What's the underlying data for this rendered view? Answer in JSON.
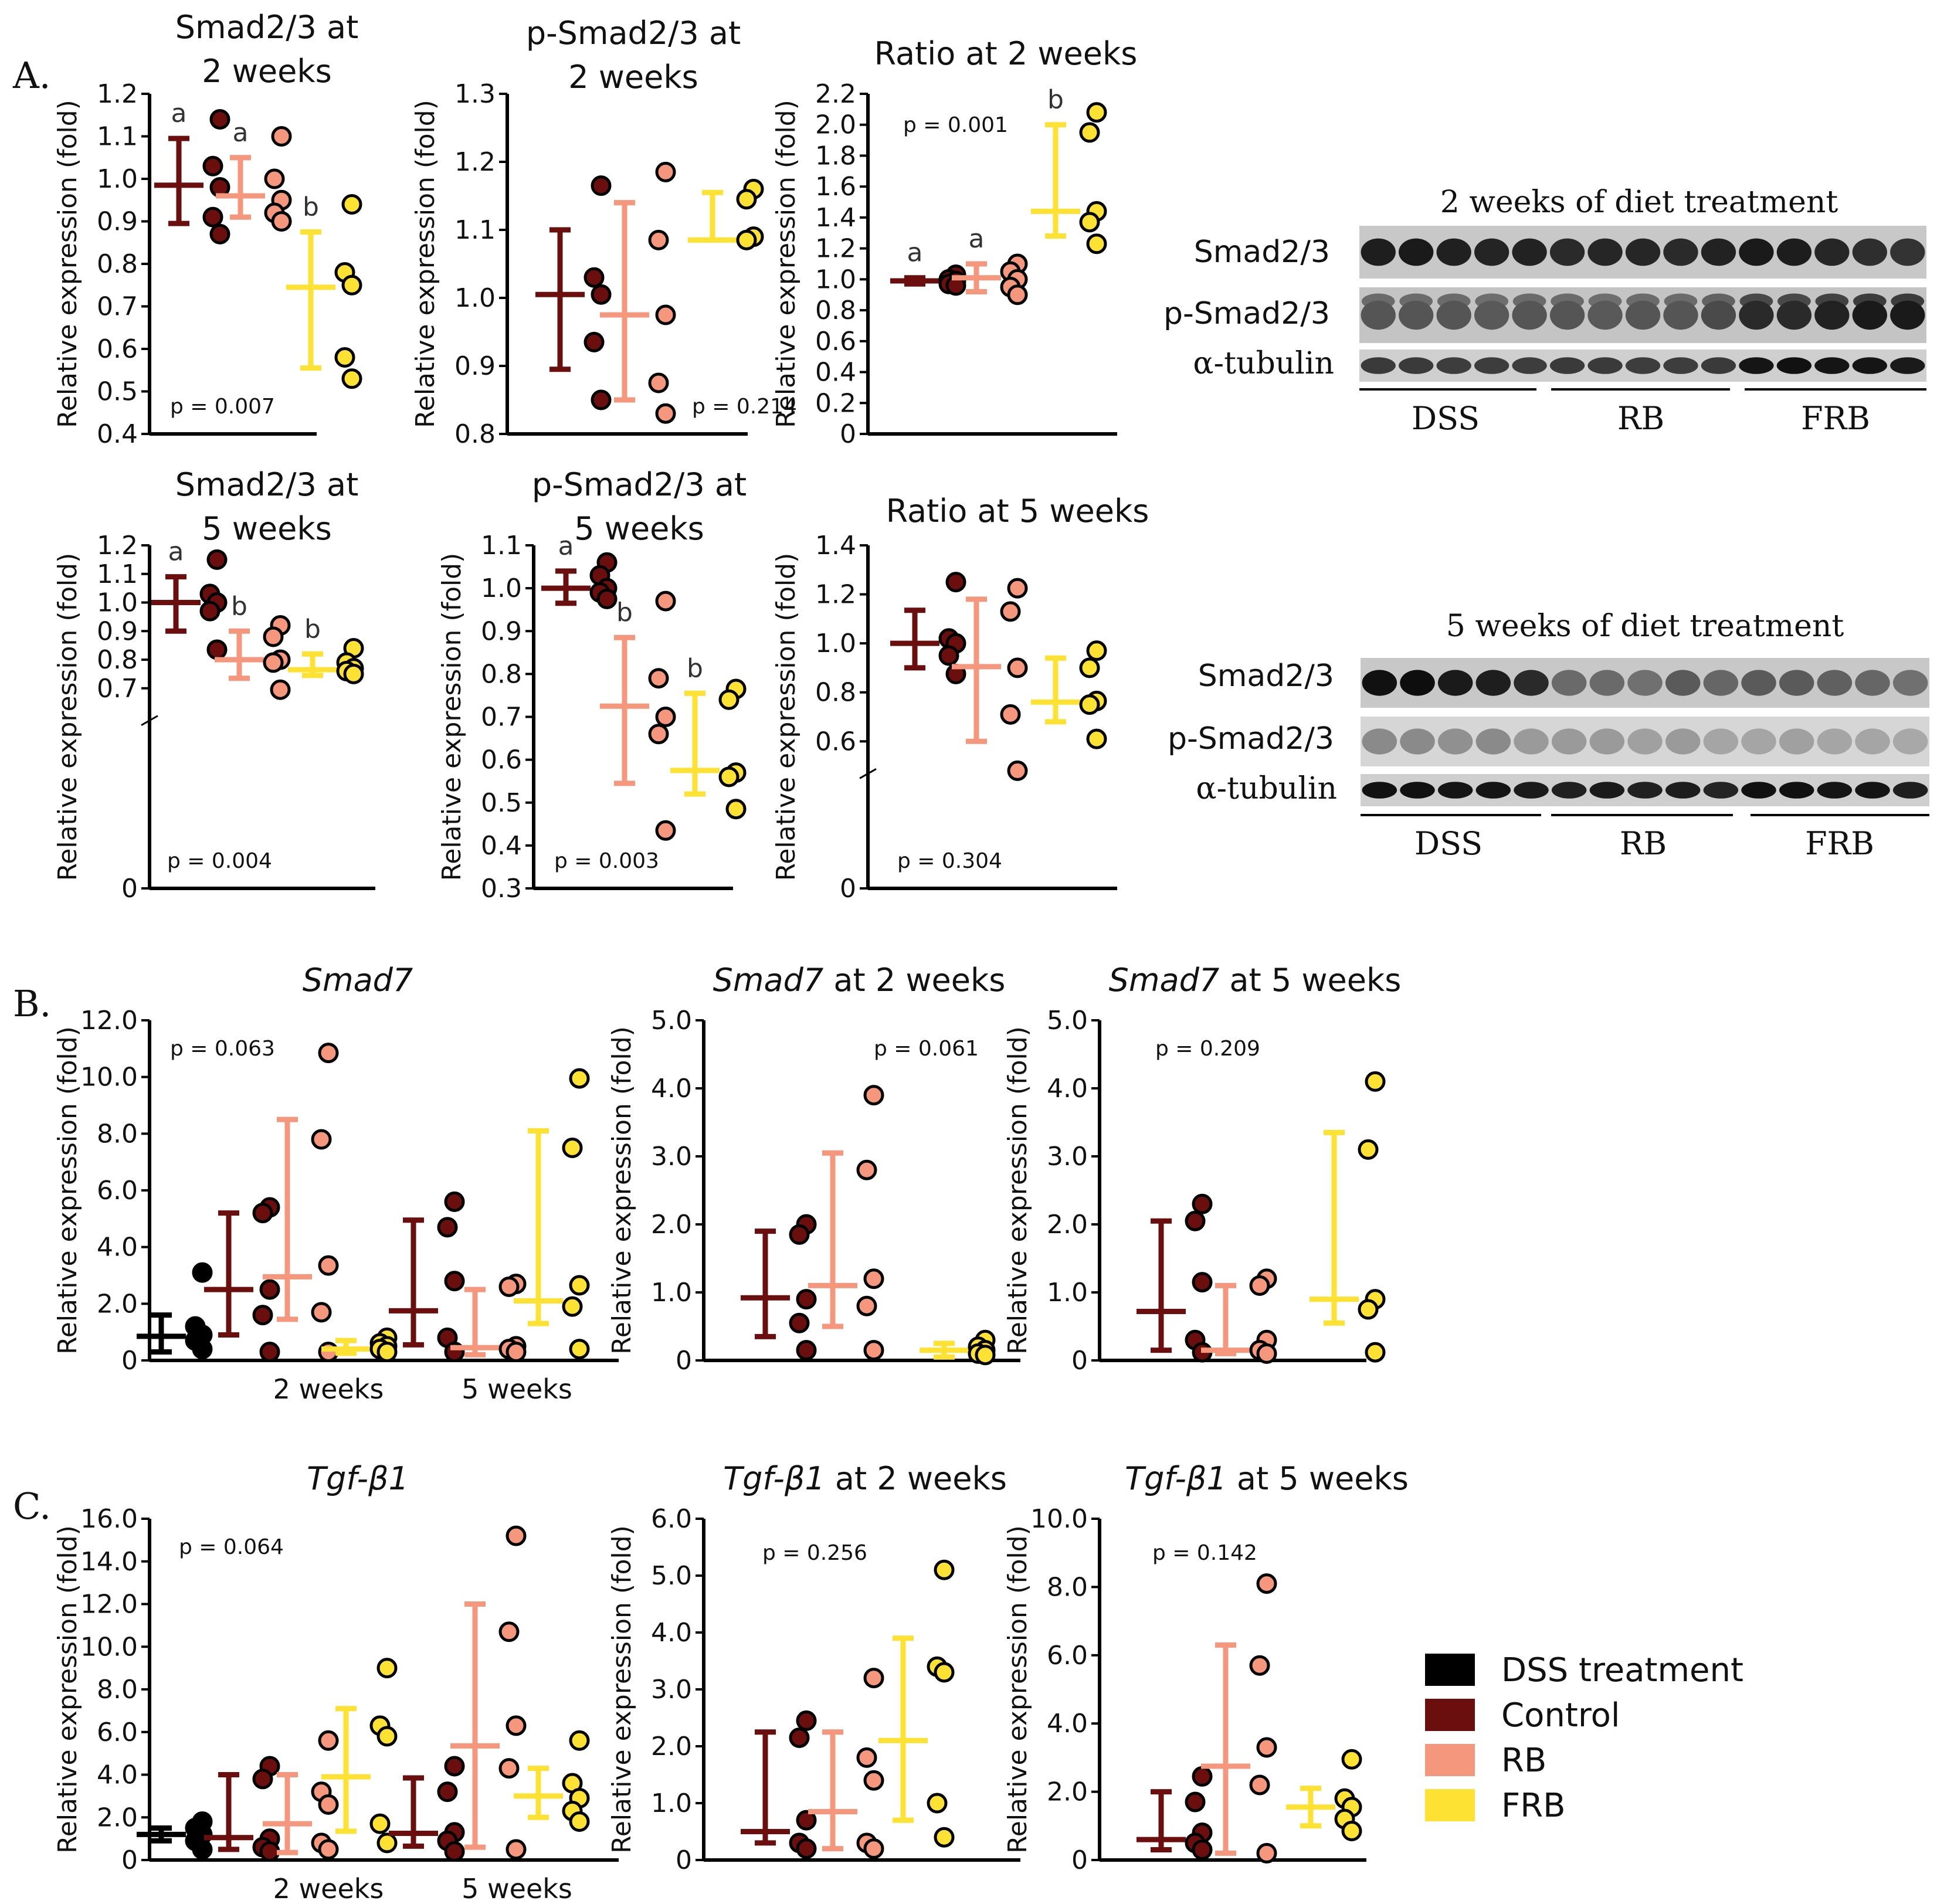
{
  "colors": {
    "DSS treatment": "#000000",
    "Control": "#6b0e0e",
    "RB": "#f4977c",
    "FRB": "#fde233",
    "dot_edge": "#000000"
  },
  "panel_labels": [
    "A.",
    "B.",
    "C."
  ],
  "y_label": "Relative expression (fold)",
  "legend": {
    "entries": [
      "DSS treatment",
      "Control",
      "RB",
      "FRB"
    ]
  },
  "blots": [
    {
      "title": "2 weeks of diet treatment",
      "rows": [
        "Smad2/3",
        "p-Smad2/3",
        "α-tubulin"
      ],
      "groups": [
        "DSS",
        "RB",
        "FRB"
      ],
      "lanes_per_group": 5
    },
    {
      "title": "5 weeks of diet treatment",
      "rows": [
        "Smad2/3",
        "p-Smad2/3",
        "α-tubulin"
      ],
      "groups": [
        "DSS",
        "RB",
        "FRB"
      ],
      "lanes_per_group": 5
    }
  ],
  "chart_data": [
    {
      "id": "a1",
      "type": "scatter",
      "title": [
        "Smad2/3 at",
        "2 weeks"
      ],
      "ylabel": "Relative expression (fold)",
      "ylim": [
        0.4,
        1.2
      ],
      "yticks": [
        0.4,
        0.5,
        0.6,
        0.7,
        0.8,
        0.9,
        1.0,
        1.1,
        1.2
      ],
      "yticklabels": [
        "0.4",
        "0.5",
        "0.6",
        "0.7",
        "0.8",
        "0.9",
        "1.0",
        "1.1",
        "1.2"
      ],
      "p_value": "p = 0.007",
      "series": [
        {
          "name": "Control",
          "mean": 0.985,
          "low": 0.895,
          "high": 1.095,
          "points": [
            1.14,
            1.03,
            0.98,
            0.91,
            0.87
          ],
          "letter": "a"
        },
        {
          "name": "RB",
          "mean": 0.96,
          "low": 0.91,
          "high": 1.05,
          "points": [
            1.1,
            1.0,
            0.95,
            0.92,
            0.9
          ],
          "letter": "a"
        },
        {
          "name": "FRB",
          "mean": 0.745,
          "low": 0.555,
          "high": 0.875,
          "points": [
            0.94,
            0.78,
            0.75,
            0.58,
            0.53
          ],
          "letter": "b"
        }
      ],
      "xgroups": []
    },
    {
      "id": "a2",
      "type": "scatter",
      "title": [
        "p-Smad2/3 at",
        "2 weeks"
      ],
      "ylabel": "Relative expression (fold)",
      "ylim": [
        0.8,
        1.3
      ],
      "yticks": [
        0.8,
        0.9,
        1.0,
        1.1,
        1.2,
        1.3
      ],
      "yticklabels": [
        "0.8",
        "0.9",
        "1.0",
        "1.1",
        "1.2",
        "1.3"
      ],
      "p_value": "p = 0.214",
      "series": [
        {
          "name": "Control",
          "mean": 1.005,
          "low": 0.895,
          "high": 1.1,
          "points": [
            1.165,
            1.03,
            1.005,
            0.935,
            0.85
          ]
        },
        {
          "name": "RB",
          "mean": 0.975,
          "low": 0.85,
          "high": 1.14,
          "points": [
            1.185,
            1.085,
            0.975,
            0.875,
            0.83
          ]
        },
        {
          "name": "FRB",
          "mean": 1.085,
          "low": 1.085,
          "high": 1.155,
          "points": [
            1.16,
            1.145,
            1.09,
            1.085
          ]
        }
      ],
      "xgroups": []
    },
    {
      "id": "a3",
      "type": "scatter",
      "title": [
        "Ratio at 2 weeks"
      ],
      "ylabel": "Relative expression (fold)",
      "ylim": [
        0,
        2.2
      ],
      "yticks": [
        0,
        0.2,
        0.4,
        0.6,
        0.8,
        1.0,
        1.2,
        1.4,
        1.6,
        1.8,
        2.0,
        2.2
      ],
      "yticklabels": [
        "0",
        "0.2",
        "0.4",
        "0.6",
        "0.8",
        "1.0",
        "1.2",
        "1.4",
        "1.6",
        "1.8",
        "2.0",
        "2.2"
      ],
      "p_value": "p = 0.001",
      "series": [
        {
          "name": "Control",
          "mean": 0.99,
          "low": 0.97,
          "high": 1.01,
          "points": [
            1.03,
            1.0,
            0.99,
            0.97,
            0.96
          ],
          "letter": "a"
        },
        {
          "name": "RB",
          "mean": 1.01,
          "low": 0.92,
          "high": 1.1,
          "points": [
            1.1,
            1.05,
            1.0,
            0.95,
            0.9
          ],
          "letter": "a"
        },
        {
          "name": "FRB",
          "mean": 1.44,
          "low": 1.28,
          "high": 2.0,
          "points": [
            2.08,
            1.95,
            1.44,
            1.37,
            1.23
          ],
          "letter": "b"
        }
      ],
      "xgroups": []
    },
    {
      "id": "a4",
      "type": "scatter",
      "title": [
        "Smad2/3 at",
        "5 weeks"
      ],
      "ylabel": "Relative expression (fold)",
      "ylim": [
        0,
        1.2
      ],
      "yticks": [
        0,
        0.7,
        0.8,
        0.9,
        1.0,
        1.1,
        1.2
      ],
      "yticklabels": [
        "0",
        "0.7",
        "0.8",
        "0.9",
        "1.0",
        "1.1",
        "1.2"
      ],
      "axis_break": true,
      "p_value": "p = 0.004",
      "series": [
        {
          "name": "Control",
          "mean": 1.0,
          "low": 0.9,
          "high": 1.09,
          "points": [
            1.15,
            1.03,
            1.0,
            0.97,
            0.835
          ],
          "letter": "a"
        },
        {
          "name": "RB",
          "mean": 0.8,
          "low": 0.735,
          "high": 0.9,
          "points": [
            0.92,
            0.88,
            0.8,
            0.79,
            0.695
          ],
          "letter": "b"
        },
        {
          "name": "FRB",
          "mean": 0.765,
          "low": 0.745,
          "high": 0.82,
          "points": [
            0.84,
            0.79,
            0.77,
            0.76,
            0.75
          ],
          "letter": "b"
        }
      ],
      "xgroups": []
    },
    {
      "id": "a5",
      "type": "scatter",
      "title": [
        "p-Smad2/3 at",
        "5 weeks"
      ],
      "ylabel": "Relative expression (fold)",
      "ylim": [
        0.3,
        1.1
      ],
      "yticks": [
        0.3,
        0.4,
        0.5,
        0.6,
        0.7,
        0.8,
        0.9,
        1.0,
        1.1
      ],
      "yticklabels": [
        "0.3",
        "0.4",
        "0.5",
        "0.6",
        "0.7",
        "0.8",
        "0.9",
        "1.0",
        "1.1"
      ],
      "p_value": "p = 0.003",
      "series": [
        {
          "name": "Control",
          "mean": 1.0,
          "low": 0.965,
          "high": 1.04,
          "points": [
            1.06,
            1.03,
            1.0,
            0.99,
            0.975
          ],
          "letter": "a"
        },
        {
          "name": "RB",
          "mean": 0.725,
          "low": 0.545,
          "high": 0.885,
          "points": [
            0.97,
            0.79,
            0.7,
            0.66,
            0.435
          ],
          "letter": "b"
        },
        {
          "name": "FRB",
          "mean": 0.575,
          "low": 0.52,
          "high": 0.755,
          "points": [
            0.765,
            0.74,
            0.57,
            0.56,
            0.485
          ],
          "letter": "b"
        }
      ],
      "xgroups": []
    },
    {
      "id": "a6",
      "type": "scatter",
      "title": [
        "Ratio at 5 weeks"
      ],
      "ylabel": "Relative expression (fold)",
      "ylim": [
        0,
        1.4
      ],
      "yticks": [
        0,
        0.6,
        0.8,
        1.0,
        1.2,
        1.4
      ],
      "yticklabels": [
        "0",
        "0.6",
        "0.8",
        "1.0",
        "1.2",
        "1.4"
      ],
      "axis_break": true,
      "p_value": "p = 0.304",
      "series": [
        {
          "name": "Control",
          "mean": 1.0,
          "low": 0.9,
          "high": 1.135,
          "points": [
            1.25,
            1.02,
            1.0,
            0.95,
            0.875
          ]
        },
        {
          "name": "RB",
          "mean": 0.905,
          "low": 0.6,
          "high": 1.18,
          "points": [
            1.225,
            1.13,
            0.9,
            0.71,
            0.48
          ]
        },
        {
          "name": "FRB",
          "mean": 0.76,
          "low": 0.68,
          "high": 0.94,
          "points": [
            0.97,
            0.9,
            0.765,
            0.75,
            0.61
          ]
        }
      ],
      "xgroups": []
    },
    {
      "id": "b1",
      "type": "scatter",
      "title": [
        "Smad7"
      ],
      "title_italic": "Smad7",
      "title_rest": "",
      "ylabel": "Relative expression (fold)",
      "ylim": [
        0,
        12
      ],
      "yticks": [
        0,
        2,
        4,
        6,
        8,
        10,
        12
      ],
      "yticklabels": [
        "0",
        "2.0",
        "4.0",
        "6.0",
        "8.0",
        "10.0",
        "12.0"
      ],
      "p_value": "p = 0.063",
      "series": [
        {
          "name": "DSS treatment",
          "mean": 0.85,
          "low": 0.3,
          "high": 1.6,
          "points": [
            3.1,
            1.2,
            0.9,
            0.7,
            0.4
          ]
        },
        {
          "name": "Control",
          "mean": 2.5,
          "low": 0.9,
          "high": 5.2,
          "points": [
            5.4,
            5.2,
            2.5,
            1.6,
            0.3
          ]
        },
        {
          "name": "RB",
          "mean": 2.95,
          "low": 1.45,
          "high": 8.5,
          "points": [
            10.85,
            7.8,
            3.35,
            1.7,
            0.3
          ]
        },
        {
          "name": "FRB",
          "mean": 0.4,
          "low": 0.25,
          "high": 0.7,
          "points": [
            0.8,
            0.6,
            0.5,
            0.4,
            0.3
          ]
        },
        {
          "name": "Control",
          "mean": 1.75,
          "low": 0.55,
          "high": 4.95,
          "points": [
            5.6,
            4.7,
            2.8,
            0.8,
            0.3
          ]
        },
        {
          "name": "RB",
          "mean": 0.45,
          "low": 0.2,
          "high": 2.5,
          "points": [
            2.7,
            2.6,
            0.5,
            0.4,
            0.3
          ]
        },
        {
          "name": "FRB",
          "mean": 2.1,
          "low": 1.3,
          "high": 8.1,
          "points": [
            9.95,
            7.5,
            2.65,
            1.9,
            0.4
          ]
        }
      ],
      "xgroups": [
        "2 weeks",
        "5 weeks"
      ]
    },
    {
      "id": "b2",
      "type": "scatter",
      "title": [
        "Smad7 at 2 weeks"
      ],
      "title_italic": "Smad7",
      "title_rest": " at 2 weeks",
      "ylabel": "Relative expression (fold)",
      "ylim": [
        0,
        5
      ],
      "yticks": [
        0,
        1,
        2,
        3,
        4,
        5
      ],
      "yticklabels": [
        "0",
        "1.0",
        "2.0",
        "3.0",
        "4.0",
        "5.0"
      ],
      "p_value": "p = 0.061",
      "series": [
        {
          "name": "Control",
          "mean": 0.92,
          "low": 0.35,
          "high": 1.9,
          "points": [
            2.0,
            1.85,
            0.9,
            0.55,
            0.15
          ]
        },
        {
          "name": "RB",
          "mean": 1.1,
          "low": 0.5,
          "high": 3.05,
          "points": [
            3.9,
            2.8,
            1.2,
            0.8,
            0.15
          ]
        },
        {
          "name": "FRB",
          "mean": 0.15,
          "low": 0.05,
          "high": 0.25,
          "points": [
            0.3,
            0.2,
            0.15,
            0.1,
            0.08
          ]
        }
      ],
      "xgroups": []
    },
    {
      "id": "b3",
      "type": "scatter",
      "title": [
        "Smad7 at 5 weeks"
      ],
      "title_italic": "Smad7",
      "title_rest": " at 5 weeks",
      "ylabel": "Relative expression (fold)",
      "ylim": [
        0,
        5
      ],
      "yticks": [
        0,
        1,
        2,
        3,
        4,
        5
      ],
      "yticklabels": [
        "0",
        "1.0",
        "2.0",
        "3.0",
        "4.0",
        "5.0"
      ],
      "p_value": "p = 0.209",
      "series": [
        {
          "name": "Control",
          "mean": 0.72,
          "low": 0.15,
          "high": 2.05,
          "points": [
            2.3,
            2.05,
            1.15,
            0.3,
            0.12
          ]
        },
        {
          "name": "RB",
          "mean": 0.15,
          "low": 0.1,
          "high": 1.1,
          "points": [
            1.2,
            1.1,
            0.3,
            0.15,
            0.1
          ]
        },
        {
          "name": "FRB",
          "mean": 0.9,
          "low": 0.55,
          "high": 3.35,
          "points": [
            4.1,
            3.1,
            0.9,
            0.75,
            0.12
          ]
        }
      ],
      "xgroups": []
    },
    {
      "id": "c1",
      "type": "scatter",
      "title": [
        "Tgf-β1"
      ],
      "title_italic": "Tgf-β1",
      "title_rest": "",
      "ylabel": "Relative expression (fold)",
      "ylim": [
        0,
        16
      ],
      "yticks": [
        0,
        2,
        4,
        6,
        8,
        10,
        12,
        14,
        16
      ],
      "yticklabels": [
        "0",
        "2.0",
        "4.0",
        "6.0",
        "8.0",
        "10.0",
        "12.0",
        "14.0",
        "16.0"
      ],
      "p_value": "p = 0.064",
      "series": [
        {
          "name": "DSS treatment",
          "mean": 1.2,
          "low": 0.9,
          "high": 1.5,
          "points": [
            1.8,
            1.5,
            1.2,
            0.9,
            0.5
          ]
        },
        {
          "name": "Control",
          "mean": 1.05,
          "low": 0.5,
          "high": 4.0,
          "points": [
            4.4,
            3.8,
            1.0,
            0.6,
            0.4
          ]
        },
        {
          "name": "RB",
          "mean": 1.7,
          "low": 0.35,
          "high": 4.0,
          "points": [
            5.6,
            3.2,
            2.6,
            0.8,
            0.5
          ]
        },
        {
          "name": "FRB",
          "mean": 3.9,
          "low": 1.35,
          "high": 7.1,
          "points": [
            9.0,
            6.3,
            5.8,
            1.7,
            0.8
          ]
        },
        {
          "name": "Control",
          "mean": 1.25,
          "low": 0.65,
          "high": 3.85,
          "points": [
            4.4,
            3.2,
            1.3,
            0.9,
            0.4
          ]
        },
        {
          "name": "RB",
          "mean": 5.35,
          "low": 0.6,
          "high": 12.0,
          "points": [
            15.2,
            10.7,
            6.3,
            4.3,
            0.5
          ]
        },
        {
          "name": "FRB",
          "mean": 3.0,
          "low": 2.0,
          "high": 4.3,
          "points": [
            5.6,
            3.6,
            2.9,
            2.3,
            1.8
          ]
        }
      ],
      "xgroups": [
        "2 weeks",
        "5 weeks"
      ]
    },
    {
      "id": "c2",
      "type": "scatter",
      "title": [
        "Tgf-β1 at 2 weeks"
      ],
      "title_italic": "Tgf-β1",
      "title_rest": " at 2 weeks",
      "ylabel": "Relative expression (fold)",
      "ylim": [
        0,
        6
      ],
      "yticks": [
        0,
        1,
        2,
        3,
        4,
        5,
        6
      ],
      "yticklabels": [
        "0",
        "1.0",
        "2.0",
        "3.0",
        "4.0",
        "5.0",
        "6.0"
      ],
      "p_value": "p = 0.256",
      "series": [
        {
          "name": "Control",
          "mean": 0.5,
          "low": 0.3,
          "high": 2.25,
          "points": [
            2.45,
            2.15,
            0.7,
            0.3,
            0.2
          ]
        },
        {
          "name": "RB",
          "mean": 0.85,
          "low": 0.2,
          "high": 2.25,
          "points": [
            3.2,
            1.8,
            1.4,
            0.3,
            0.2
          ]
        },
        {
          "name": "FRB",
          "mean": 2.1,
          "low": 0.7,
          "high": 3.9,
          "points": [
            5.1,
            3.4,
            3.3,
            1.0,
            0.4
          ]
        }
      ],
      "xgroups": []
    },
    {
      "id": "c3",
      "type": "scatter",
      "title": [
        "Tgf-β1 at 5 weeks"
      ],
      "title_italic": "Tgf-β1",
      "title_rest": " at 5 weeks",
      "ylabel": "Relative expression (fold)",
      "ylim": [
        0,
        10
      ],
      "yticks": [
        0,
        2,
        4,
        6,
        8,
        10
      ],
      "yticklabels": [
        "0",
        "2.0",
        "4.0",
        "6.0",
        "8.0",
        "10.0"
      ],
      "p_value": "p = 0.142",
      "series": [
        {
          "name": "Control",
          "mean": 0.6,
          "low": 0.3,
          "high": 2.0,
          "points": [
            2.45,
            1.7,
            0.8,
            0.5,
            0.3
          ]
        },
        {
          "name": "RB",
          "mean": 2.75,
          "low": 0.2,
          "high": 6.3,
          "points": [
            8.1,
            5.7,
            3.3,
            2.2,
            0.2
          ]
        },
        {
          "name": "FRB",
          "mean": 1.55,
          "low": 1.0,
          "high": 2.1,
          "points": [
            2.95,
            1.8,
            1.55,
            1.2,
            0.85
          ]
        }
      ],
      "xgroups": []
    }
  ]
}
